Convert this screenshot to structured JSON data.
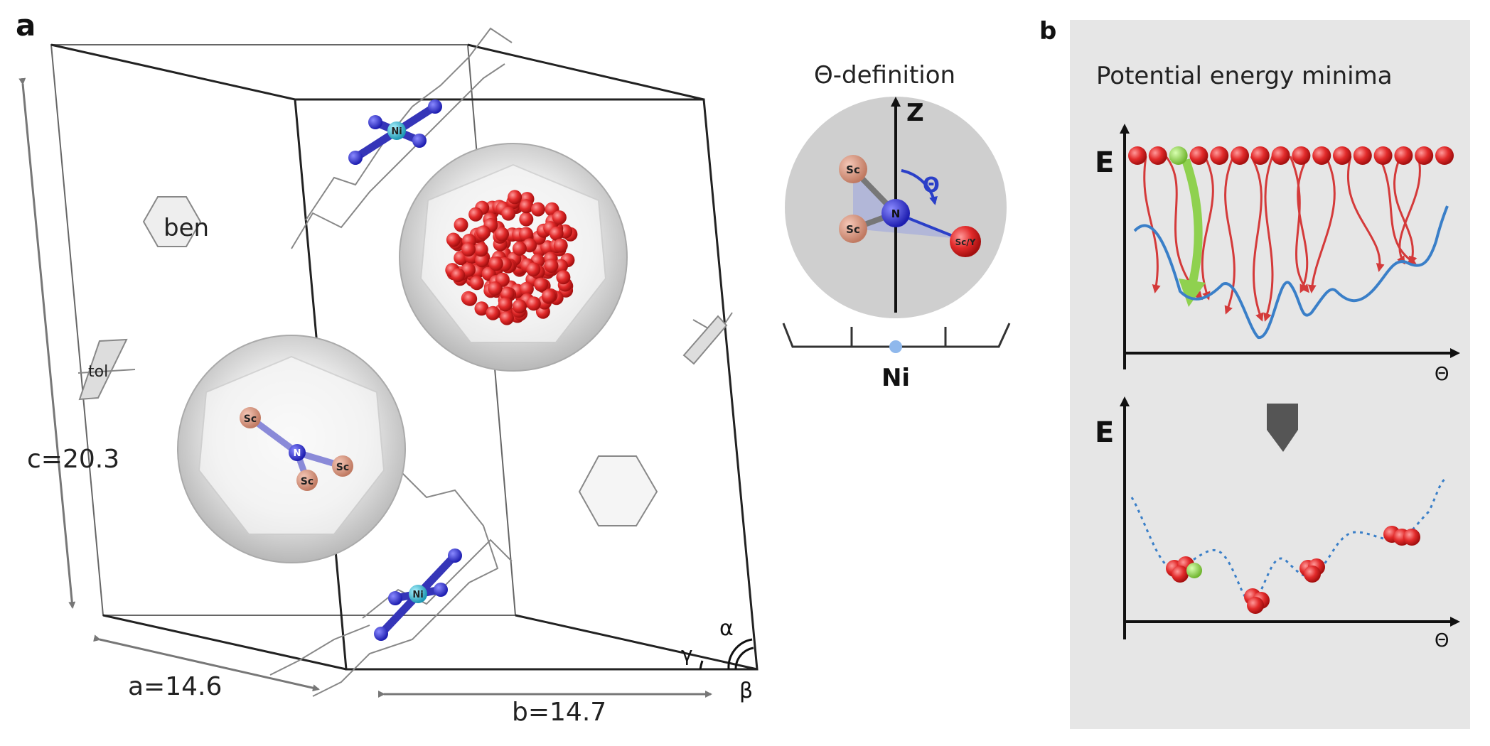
{
  "panel_a": {
    "label": "a",
    "lattice": {
      "c": "c=20.3",
      "a": "a=14.6",
      "b": "b=14.7",
      "alpha": "α",
      "beta": "β",
      "gamma": "γ"
    },
    "molecules": {
      "benzene": "ben",
      "toluene": "tol"
    },
    "atoms": {
      "sc": "Sc",
      "n": "N",
      "ni": "Ni"
    },
    "theta_definition": {
      "title": "Θ-definition",
      "z_axis": "Z",
      "theta": "Θ",
      "sc_label": "Sc",
      "n_label": "N",
      "sc_y_label": "Sc/Y",
      "base_label": "Ni"
    }
  },
  "panel_b": {
    "label": "b",
    "title": "Potential energy minima",
    "energy_label": "E",
    "theta_axis": "Θ",
    "colors": {
      "background": "#e6e6e6",
      "curve": "#3a7fc8",
      "ball": "#dd2a2a",
      "highlight": "#8fd14f",
      "arrow_down": "#555555"
    }
  }
}
